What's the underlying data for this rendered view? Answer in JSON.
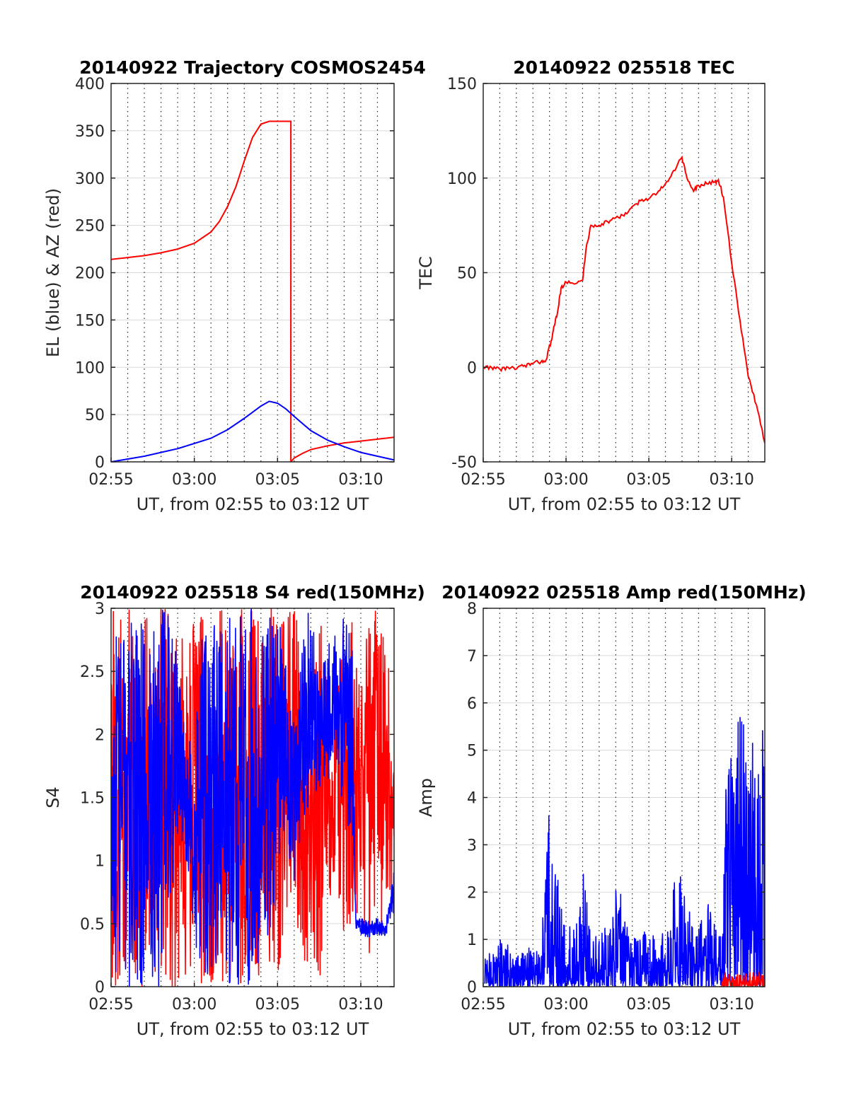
{
  "chart_data": [
    {
      "type": "line",
      "title": "20140922 Trajectory COSMOS2454",
      "xlabel": "UT, from 02:55 to 03:12 UT",
      "ylabel": "EL (blue) & AZ (red)",
      "xlim": [
        0,
        17
      ],
      "ylim": [
        0,
        400
      ],
      "x_ticks": [
        {
          "v": 0,
          "label": "02:55"
        },
        {
          "v": 5,
          "label": "03:00"
        },
        {
          "v": 10,
          "label": "03:05"
        },
        {
          "v": 15,
          "label": "03:10"
        }
      ],
      "y_ticks": [
        {
          "v": 0,
          "label": "0"
        },
        {
          "v": 50,
          "label": "50"
        },
        {
          "v": 100,
          "label": "100"
        },
        {
          "v": 150,
          "label": "150"
        },
        {
          "v": 200,
          "label": "200"
        },
        {
          "v": 250,
          "label": "250"
        },
        {
          "v": 300,
          "label": "300"
        },
        {
          "v": 350,
          "label": "350"
        },
        {
          "v": 400,
          "label": "400"
        }
      ],
      "x_unit_note": "minutes after 02:55 UT",
      "dotted_vlines": [
        1,
        2,
        3,
        4,
        5,
        6,
        7,
        8,
        9,
        10,
        11,
        12,
        13,
        14,
        15,
        16
      ],
      "grid": true,
      "series": [
        {
          "color": "#ff0000",
          "mode": "line",
          "x": [
            0,
            1,
            2,
            3,
            4,
            5,
            6,
            6.5,
            7,
            7.5,
            8,
            8.5,
            9,
            9.5,
            10,
            10.5,
            10.8,
            10.8,
            11,
            11.5,
            12,
            13,
            14,
            15,
            16,
            17
          ],
          "y": [
            214,
            216,
            218,
            221,
            225,
            231,
            243,
            254,
            270,
            291,
            318,
            343,
            357,
            360,
            360,
            360,
            360,
            0,
            4,
            9,
            13,
            17,
            20,
            22,
            24,
            26
          ]
        },
        {
          "color": "#0000ff",
          "mode": "line",
          "x": [
            0,
            2,
            4,
            6,
            7,
            8,
            9,
            9.5,
            10,
            10.5,
            11,
            12,
            13,
            14,
            15,
            16,
            17
          ],
          "y": [
            0,
            6,
            14,
            25,
            34,
            46,
            59,
            64,
            62,
            56,
            48,
            33,
            23,
            16,
            10,
            6,
            2
          ]
        }
      ]
    },
    {
      "type": "line",
      "title": "20140922 025518 TEC",
      "xlabel": "UT, from 02:55 to 03:12 UT",
      "ylabel": "TEC",
      "xlim": [
        0,
        17
      ],
      "ylim": [
        -50,
        150
      ],
      "x_ticks": [
        {
          "v": 0,
          "label": "02:55"
        },
        {
          "v": 5,
          "label": "03:00"
        },
        {
          "v": 10,
          "label": "03:05"
        },
        {
          "v": 15,
          "label": "03:10"
        }
      ],
      "y_ticks": [
        {
          "v": -50,
          "label": "-50"
        },
        {
          "v": 0,
          "label": "0"
        },
        {
          "v": 50,
          "label": "50"
        },
        {
          "v": 100,
          "label": "100"
        },
        {
          "v": 150,
          "label": "150"
        }
      ],
      "x_unit_note": "minutes after 02:55 UT",
      "dotted_vlines": [
        1,
        2,
        3,
        4,
        5,
        6,
        7,
        8,
        9,
        10,
        11,
        12,
        13,
        14,
        15,
        16
      ],
      "grid": true,
      "series": [
        {
          "color": "#ff0000",
          "mode": "line",
          "x": [
            0,
            0.5,
            1,
            1.5,
            2,
            2.5,
            3,
            3.5,
            3.8,
            4.1,
            4.3,
            4.5,
            4.7,
            5,
            5.5,
            6,
            6.2,
            6.5,
            7,
            7.5,
            8,
            8.5,
            9,
            9.5,
            10,
            10.5,
            11,
            11.5,
            12,
            12.3,
            12.7,
            13,
            13.5,
            14,
            14.2,
            14.5,
            15,
            15.5,
            16,
            16.5,
            17
          ],
          "y": [
            0,
            0,
            -1,
            0,
            -1,
            1,
            2,
            3,
            4,
            14,
            22,
            30,
            42,
            45,
            44,
            46,
            62,
            75,
            75,
            77,
            79,
            80,
            85,
            88,
            89,
            92,
            97,
            104,
            111,
            100,
            93,
            96,
            97,
            98,
            99,
            90,
            55,
            25,
            -5,
            -20,
            -40
          ]
        }
      ]
    },
    {
      "type": "line",
      "title": "20140922 025518 S4 red(150MHz)",
      "xlabel": "UT, from 02:55 to 03:12 UT",
      "ylabel": "S4",
      "xlim": [
        0,
        17
      ],
      "ylim": [
        0,
        3
      ],
      "x_ticks": [
        {
          "v": 0,
          "label": "02:55"
        },
        {
          "v": 5,
          "label": "03:00"
        },
        {
          "v": 10,
          "label": "03:05"
        },
        {
          "v": 15,
          "label": "03:10"
        }
      ],
      "y_ticks": [
        {
          "v": 0,
          "label": "0"
        },
        {
          "v": 0.5,
          "label": "0.5"
        },
        {
          "v": 1,
          "label": "1"
        },
        {
          "v": 1.5,
          "label": "1.5"
        },
        {
          "v": 2,
          "label": "2"
        },
        {
          "v": 2.5,
          "label": "2.5"
        },
        {
          "v": 3,
          "label": "3"
        }
      ],
      "x_unit_note": "minutes after 02:55 UT",
      "dotted_vlines": [
        1,
        2,
        3,
        4,
        5,
        6,
        7,
        8,
        9,
        10,
        11,
        12,
        13,
        14,
        15,
        16
      ],
      "grid": true,
      "series": [
        {
          "color": "#ff0000",
          "mode": "envelope",
          "x": [
            0,
            1,
            2,
            3,
            3.5,
            4,
            4.5,
            5,
            5.5,
            6,
            6.5,
            7,
            7.5,
            8,
            8.5,
            9,
            9.5,
            10,
            10.5,
            11,
            11.5,
            12,
            12.5,
            13,
            13.5,
            14,
            14.5,
            15,
            15.5,
            16,
            16.5,
            17
          ],
          "low": [
            0,
            0,
            0,
            0,
            0,
            0,
            0,
            0,
            0,
            0,
            0,
            0,
            0,
            0,
            0,
            0,
            0,
            0,
            0.5,
            0.6,
            0,
            0.3,
            0,
            0.5,
            1.0,
            0,
            0.3,
            0.8,
            0,
            0.7,
            0,
            0.9
          ],
          "high": [
            3,
            3,
            3,
            3,
            3,
            3,
            3,
            3,
            3,
            1.2,
            3,
            3,
            3,
            3,
            3,
            3,
            3,
            3,
            3,
            3,
            2.8,
            2.2,
            3,
            2.5,
            2.4,
            3,
            3,
            2.3,
            3,
            3,
            3,
            2.2
          ]
        },
        {
          "color": "#0000ff",
          "mode": "envelope",
          "x": [
            0,
            1,
            2,
            3,
            3.5,
            4,
            4.5,
            5,
            5.5,
            6,
            6.5,
            7,
            7.5,
            8,
            8.5,
            9,
            9.5,
            10,
            10.5,
            11,
            11.5,
            12,
            12.5,
            13,
            13.5,
            14,
            14.5,
            14.7,
            15,
            15.5,
            16,
            16.5,
            17
          ],
          "low": [
            0,
            0,
            0,
            0,
            0.6,
            1.1,
            1.0,
            0.4,
            0,
            0,
            0.2,
            0,
            0,
            0,
            0,
            0,
            0,
            0.9,
            1.2,
            0.7,
            1.1,
            1.5,
            1.4,
            1.6,
            1.7,
            1.3,
            1.2,
            0.42,
            0.4,
            0.39,
            0.41,
            0.4,
            0.6
          ],
          "high": [
            3,
            3,
            3,
            3,
            3,
            2.6,
            2.0,
            1.9,
            2.9,
            3,
            2.8,
            3,
            3,
            3,
            3,
            3,
            3,
            3,
            2.6,
            2.1,
            2.9,
            3,
            2.5,
            2.7,
            2.8,
            3,
            3,
            0.55,
            0.54,
            0.53,
            0.55,
            0.52,
            1.0
          ]
        }
      ]
    },
    {
      "type": "line",
      "title": "20140922 025518 Amp red(150MHz)",
      "xlabel": "UT, from 02:55 to 03:12 UT",
      "ylabel": "Amp",
      "xlim": [
        0,
        17
      ],
      "ylim": [
        0,
        8
      ],
      "x_ticks": [
        {
          "v": 0,
          "label": "02:55"
        },
        {
          "v": 5,
          "label": "03:00"
        },
        {
          "v": 10,
          "label": "03:05"
        },
        {
          "v": 15,
          "label": "03:10"
        }
      ],
      "y_ticks": [
        {
          "v": 0,
          "label": "0"
        },
        {
          "v": 1,
          "label": "1"
        },
        {
          "v": 2,
          "label": "2"
        },
        {
          "v": 3,
          "label": "3"
        },
        {
          "v": 4,
          "label": "4"
        },
        {
          "v": 5,
          "label": "5"
        },
        {
          "v": 6,
          "label": "6"
        },
        {
          "v": 7,
          "label": "7"
        },
        {
          "v": 8,
          "label": "8"
        }
      ],
      "x_unit_note": "minutes after 02:55 UT",
      "dotted_vlines": [
        1,
        2,
        3,
        4,
        5,
        6,
        7,
        8,
        9,
        10,
        11,
        12,
        13,
        14,
        15,
        16
      ],
      "grid": true,
      "series": [
        {
          "color": "#0000ff",
          "mode": "envelope",
          "x": [
            0.1,
            0.5,
            1,
            1.5,
            2,
            2.5,
            3,
            3.5,
            3.7,
            4,
            4.2,
            4.5,
            5,
            5.5,
            6,
            6.5,
            7,
            7.5,
            8,
            8.5,
            9,
            9.5,
            10,
            10.5,
            11,
            11.5,
            12,
            12.5,
            13,
            13.5,
            14,
            14.3,
            14.6,
            15,
            15.5,
            16,
            16.5,
            17
          ],
          "low": [
            0,
            0,
            0,
            0,
            0,
            0,
            0,
            0,
            0,
            0,
            0,
            0,
            0,
            0,
            0,
            0,
            0,
            0,
            0,
            0,
            0,
            0,
            0,
            0,
            0,
            0,
            0,
            0,
            0,
            0,
            0,
            0,
            0,
            0,
            0,
            0,
            0,
            0
          ],
          "high": [
            0.6,
            0.8,
            1.0,
            0.9,
            1.1,
            0.8,
            0.9,
            0.7,
            2.3,
            3.9,
            2.9,
            2.5,
            1.2,
            1.4,
            2.5,
            1.3,
            1.0,
            1.4,
            2.4,
            1.7,
            1.1,
            1.2,
            1.2,
            1.1,
            1.3,
            2.3,
            2.5,
            1.6,
            1.2,
            1.9,
            1.4,
            1.1,
            5.0,
            4.9,
            5.8,
            5.4,
            5.3,
            5.6
          ]
        },
        {
          "color": "#ff0000",
          "mode": "envelope",
          "x": [
            14.3,
            14.6,
            15,
            15.5,
            16,
            16.5,
            17
          ],
          "low": [
            0,
            0,
            0,
            0,
            0,
            0,
            0
          ],
          "high": [
            0,
            0.35,
            0.3,
            0.25,
            0.3,
            0.35,
            0.3
          ]
        }
      ]
    }
  ]
}
